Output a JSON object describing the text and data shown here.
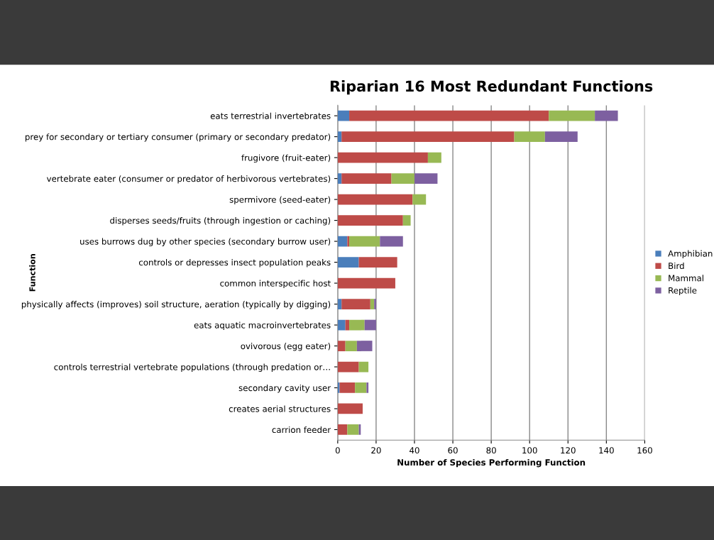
{
  "chart_data": {
    "type": "bar",
    "orientation": "horizontal",
    "stacked": true,
    "title": "Riparian 16 Most Redundant Functions",
    "xlabel": "Number of Species Performing Function",
    "ylabel": "Function",
    "categories": [
      "eats terrestrial invertebrates",
      "prey for secondary or tertiary consumer (primary or secondary predator)",
      "frugivore (fruit-eater)",
      "vertebrate eater (consumer or predator of herbivorous vertebrates)",
      "spermivore (seed-eater)",
      "disperses seeds/fruits (through ingestion or caching)",
      "uses burrows dug by other species (secondary burrow user)",
      "controls or depresses insect population peaks",
      "common interspecific host",
      "physically affects (improves) soil structure, aeration (typically by digging)",
      "eats aquatic macroinvertebrates",
      "ovivorous (egg eater)",
      "controls terrestrial vertebrate populations (through predation or…",
      "secondary cavity user",
      "creates aerial structures",
      "carrion feeder"
    ],
    "series": [
      {
        "name": "Amphibian",
        "color": "#4a7ebb",
        "values": [
          6,
          2,
          0,
          2,
          0,
          0,
          5,
          11,
          0,
          2,
          4,
          0,
          0,
          1,
          0,
          0
        ]
      },
      {
        "name": "Bird",
        "color": "#be4b48",
        "values": [
          104,
          90,
          47,
          26,
          39,
          34,
          1,
          20,
          30,
          15,
          2,
          4,
          11,
          8,
          13,
          5
        ]
      },
      {
        "name": "Mammal",
        "color": "#98b954",
        "values": [
          24,
          16,
          7,
          12,
          7,
          4,
          16,
          0,
          0,
          2,
          8,
          6,
          5,
          6,
          0,
          6
        ]
      },
      {
        "name": "Reptile",
        "color": "#7d60a0",
        "values": [
          12,
          17,
          0,
          12,
          0,
          0,
          12,
          0,
          0,
          1,
          6,
          8,
          0,
          1,
          0,
          1
        ]
      }
    ],
    "xlim": [
      0,
      160
    ],
    "xticks": [
      0,
      20,
      40,
      60,
      80,
      100,
      120,
      140,
      160
    ],
    "grid": "x",
    "legend": "right"
  }
}
